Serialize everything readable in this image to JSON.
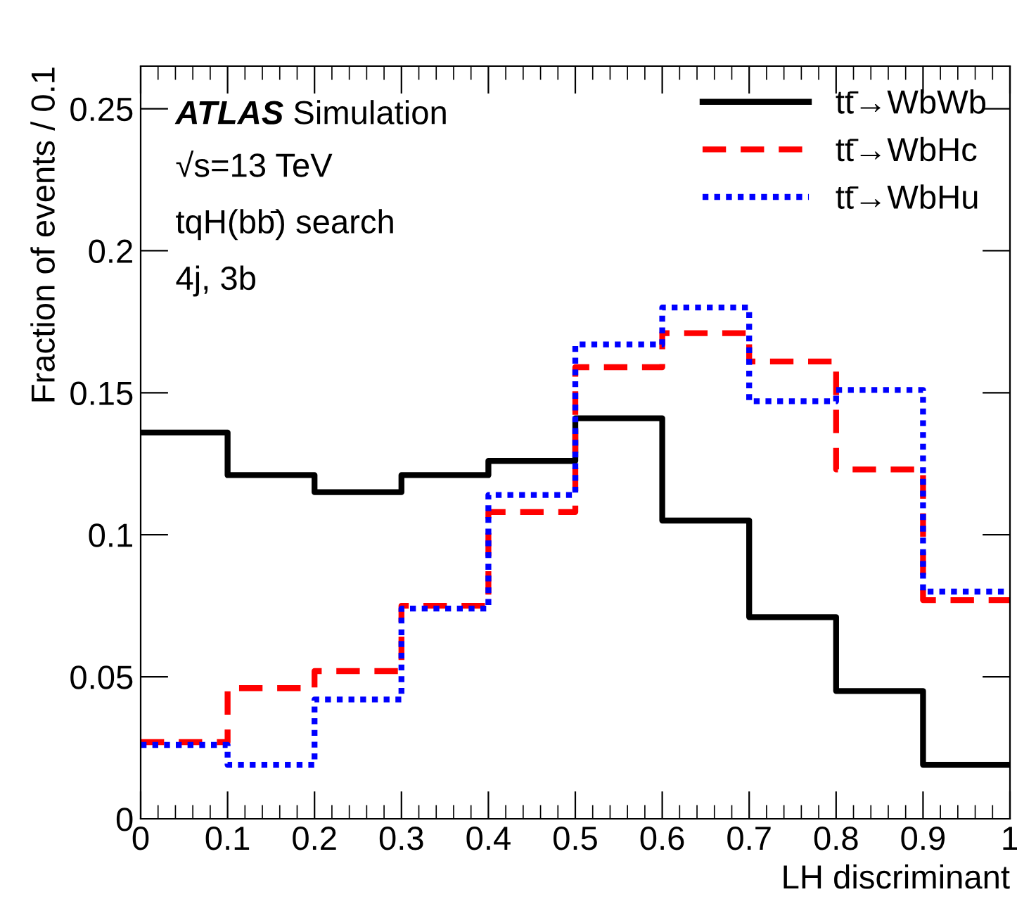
{
  "chart_data": {
    "type": "histogram",
    "xlabel": "LH discriminant",
    "ylabel": "Fraction of events / 0.1",
    "bins": [
      0,
      0.1,
      0.2,
      0.3,
      0.4,
      0.5,
      0.6,
      0.7,
      0.8,
      0.9,
      1
    ],
    "series": [
      {
        "name": "tt̄→WbWb",
        "color": "#000000",
        "line_style": "solid",
        "values": [
          0.136,
          0.121,
          0.115,
          0.121,
          0.126,
          0.141,
          0.105,
          0.071,
          0.045,
          0.019
        ]
      },
      {
        "name": "tt̄→WbHc",
        "color": "#ff0000",
        "line_style": "dashed",
        "values": [
          0.027,
          0.046,
          0.052,
          0.075,
          0.108,
          0.159,
          0.171,
          0.161,
          0.123,
          0.077
        ]
      },
      {
        "name": "tt̄→WbHu",
        "color": "#0000ff",
        "line_style": "dotted",
        "values": [
          0.026,
          0.019,
          0.042,
          0.074,
          0.114,
          0.167,
          0.18,
          0.147,
          0.151,
          0.08
        ]
      }
    ],
    "annotations": [
      "ATLAS",
      "Simulation",
      "√s=13 TeV",
      "tqH(bb̄) search",
      "4j, 3b"
    ],
    "xlim": [
      0,
      1
    ],
    "ylim": [
      0,
      0.265
    ],
    "xticks": [
      0,
      0.1,
      0.2,
      0.3,
      0.4,
      0.5,
      0.6,
      0.7,
      0.8,
      0.9,
      1
    ],
    "yticks": [
      0,
      0.05,
      0.1,
      0.15,
      0.2,
      0.25
    ],
    "legend": "top right",
    "grid": false
  }
}
